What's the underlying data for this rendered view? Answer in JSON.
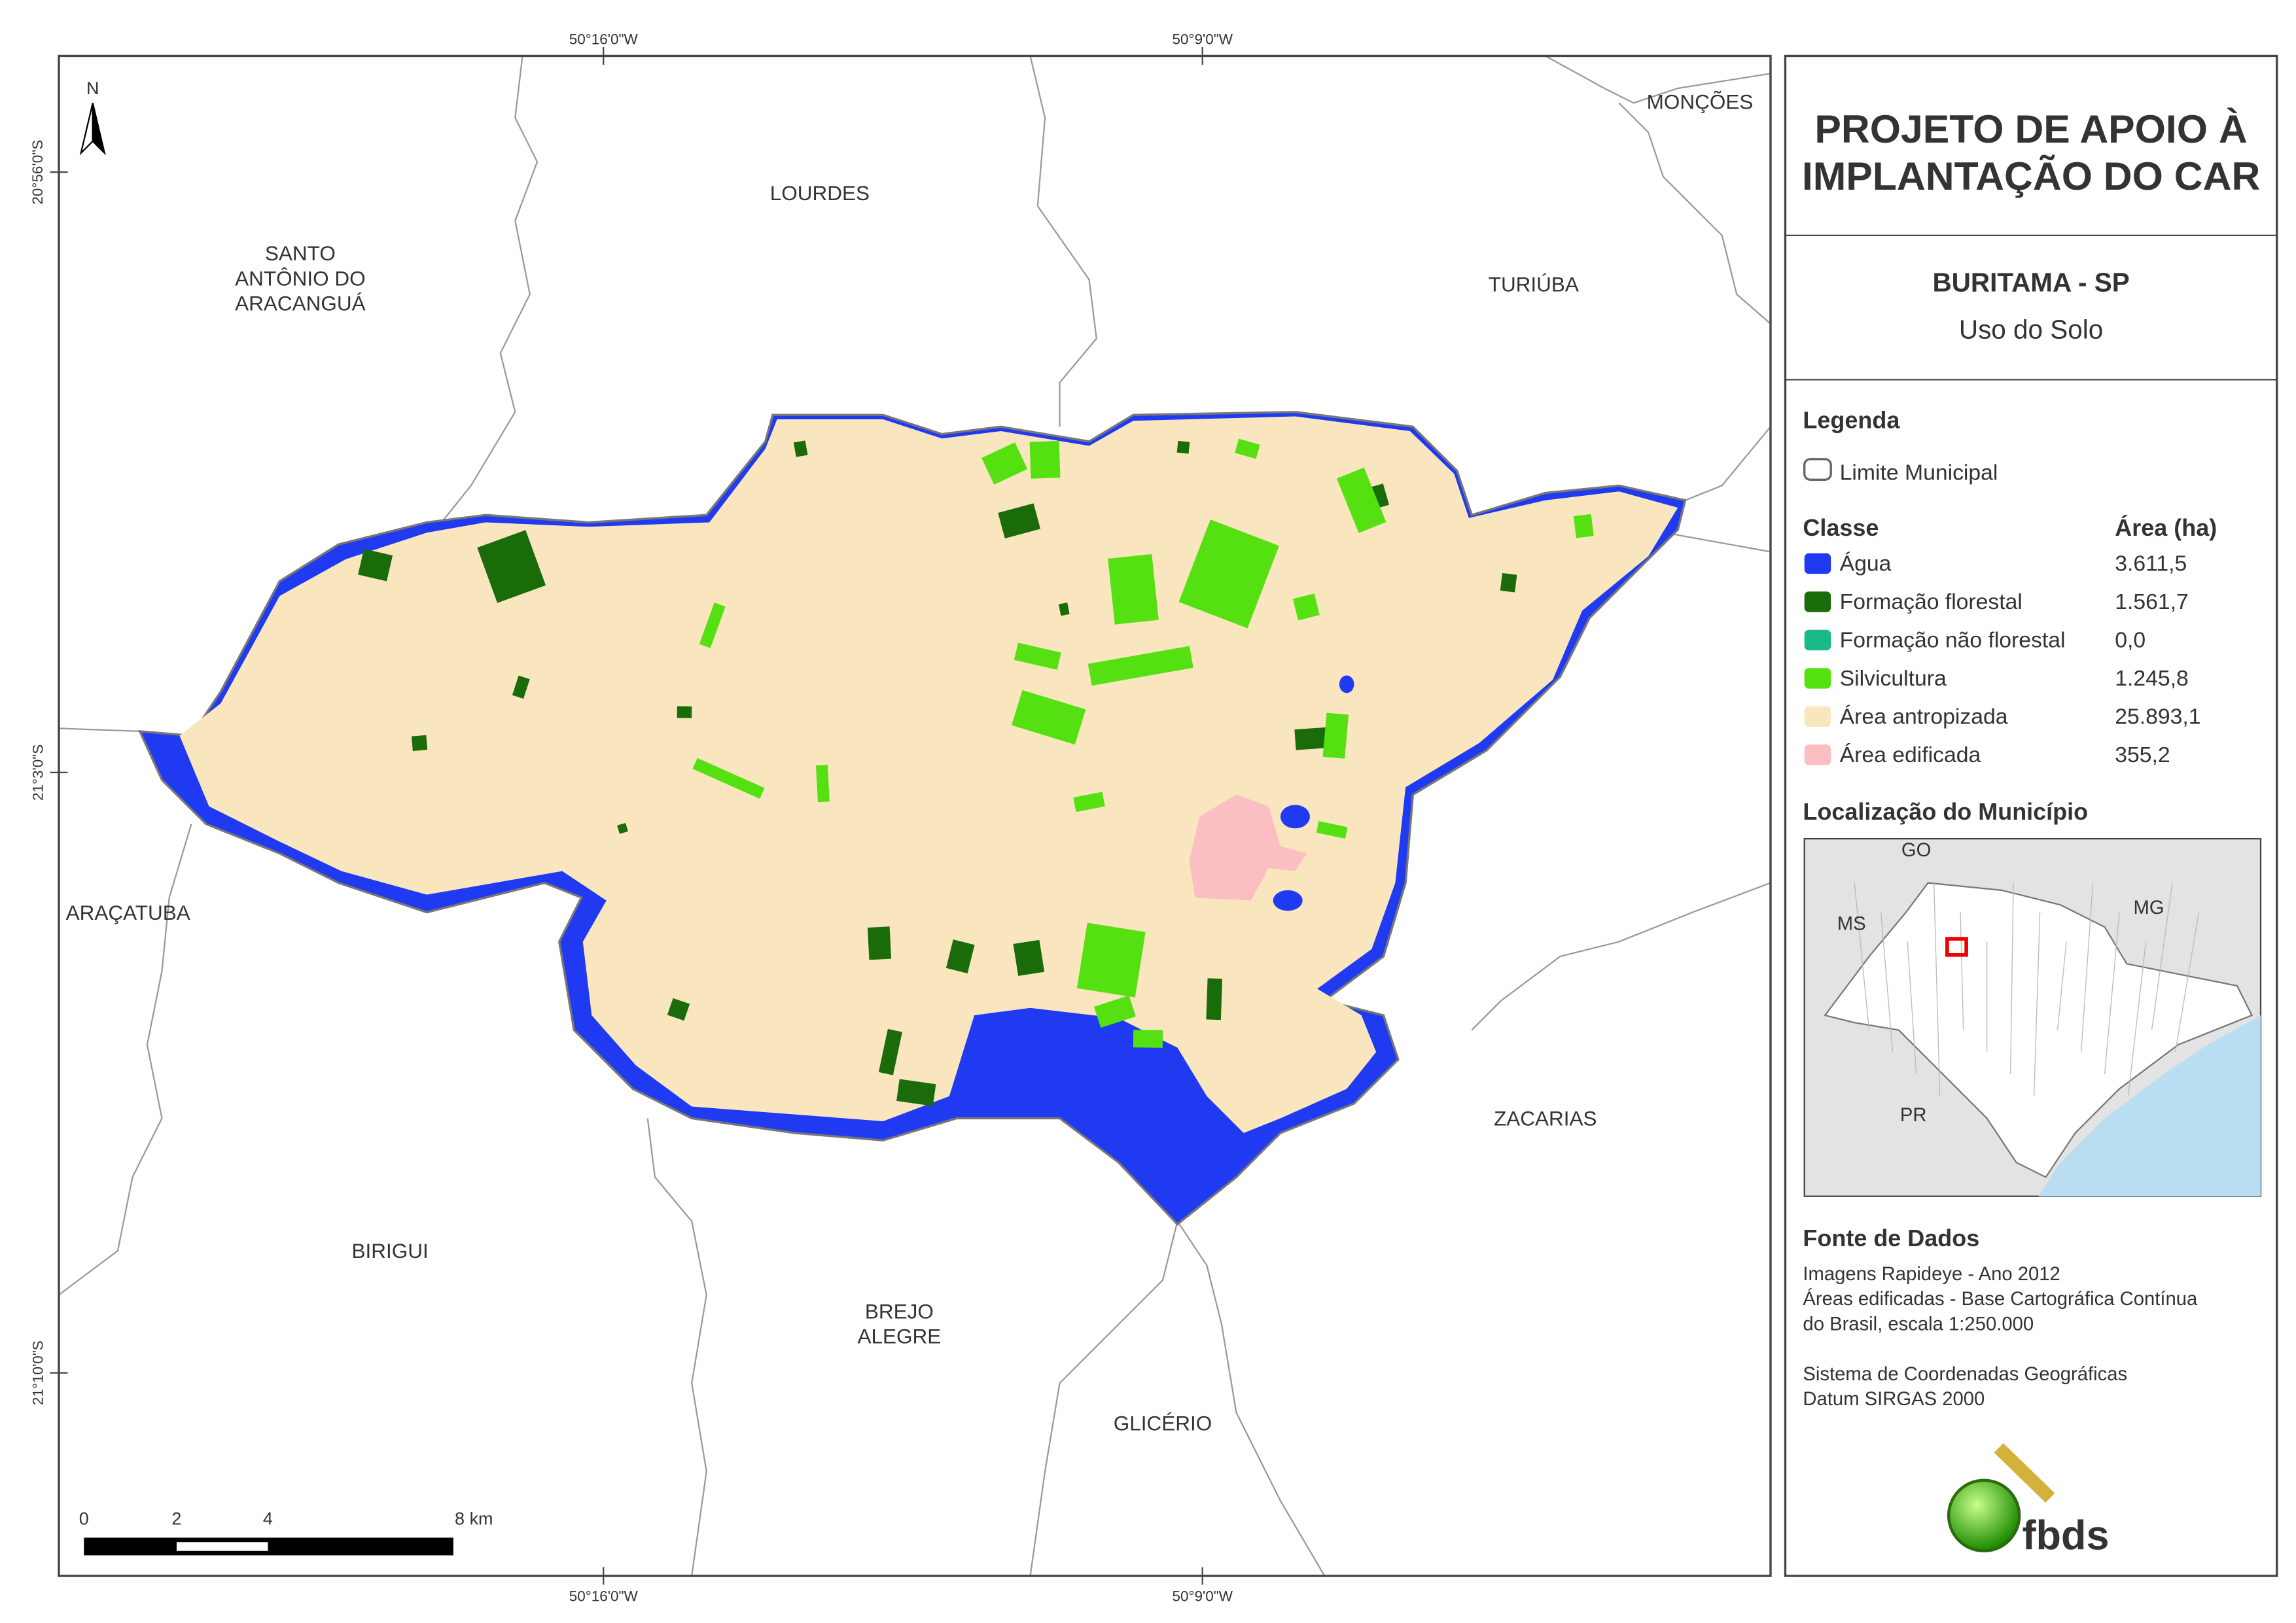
{
  "header": {
    "title_lines": [
      "PROJETO DE APOIO À",
      "IMPLANTAÇÃO DO CAR"
    ],
    "municipality": "BURITAMA - SP",
    "theme": "Uso do Solo"
  },
  "legend": {
    "title": "Legenda",
    "boundary": "Limite Municipal",
    "class_header": "Classe",
    "area_header": "Área (ha)",
    "classes": [
      {
        "name": "Água",
        "area": "3.611,5",
        "color": "#1f3af0"
      },
      {
        "name": "Formação florestal",
        "area": "1.561,7",
        "color": "#1a6b0a"
      },
      {
        "name": "Formação não florestal",
        "area": "0,0",
        "color": "#1bb88a"
      },
      {
        "name": "Silvicultura",
        "area": "1.245,8",
        "color": "#55e012"
      },
      {
        "name": "Área antropizada",
        "area": "25.893,1",
        "color": "#fae6be"
      },
      {
        "name": "Área edificada",
        "area": "355,2",
        "color": "#fbbfc3"
      }
    ]
  },
  "location": {
    "title": "Localização do Município",
    "labels": [
      "GO",
      "MS",
      "MG",
      "PR"
    ]
  },
  "sources": {
    "title": "Fonte de Dados",
    "lines": [
      "Imagens Rapideye - Ano 2012",
      "Áreas edificadas - Base Cartográfica Contínua",
      "do Brasil, escala 1:250.000",
      "Sistema de Coordenadas Geográficas",
      "Datum SIRGAS 2000"
    ]
  },
  "map": {
    "north": "N",
    "places": [
      {
        "lines": [
          "MONÇÕES"
        ]
      },
      {
        "lines": [
          "LOURDES"
        ]
      },
      {
        "lines": [
          "SANTO",
          "ANTÔNIO DO",
          "ARACANGUÁ"
        ]
      },
      {
        "lines": [
          "TURIÚBA"
        ]
      },
      {
        "lines": [
          "ARAÇATUBA"
        ]
      },
      {
        "lines": [
          "ZACARIAS"
        ]
      },
      {
        "lines": [
          "BIRIGUI"
        ]
      },
      {
        "lines": [
          "BREJO",
          "ALEGRE"
        ]
      },
      {
        "lines": [
          "GLICÉRIO"
        ]
      }
    ],
    "longitudes": [
      "50°16'0\"W",
      "50°9'0\"W"
    ],
    "latitudes": [
      "20°56'0\"S",
      "21°3'0\"S",
      "21°10'0\"S"
    ],
    "scale_labels": [
      "0",
      "2",
      "4",
      "8 km"
    ]
  },
  "logo": "fbds"
}
